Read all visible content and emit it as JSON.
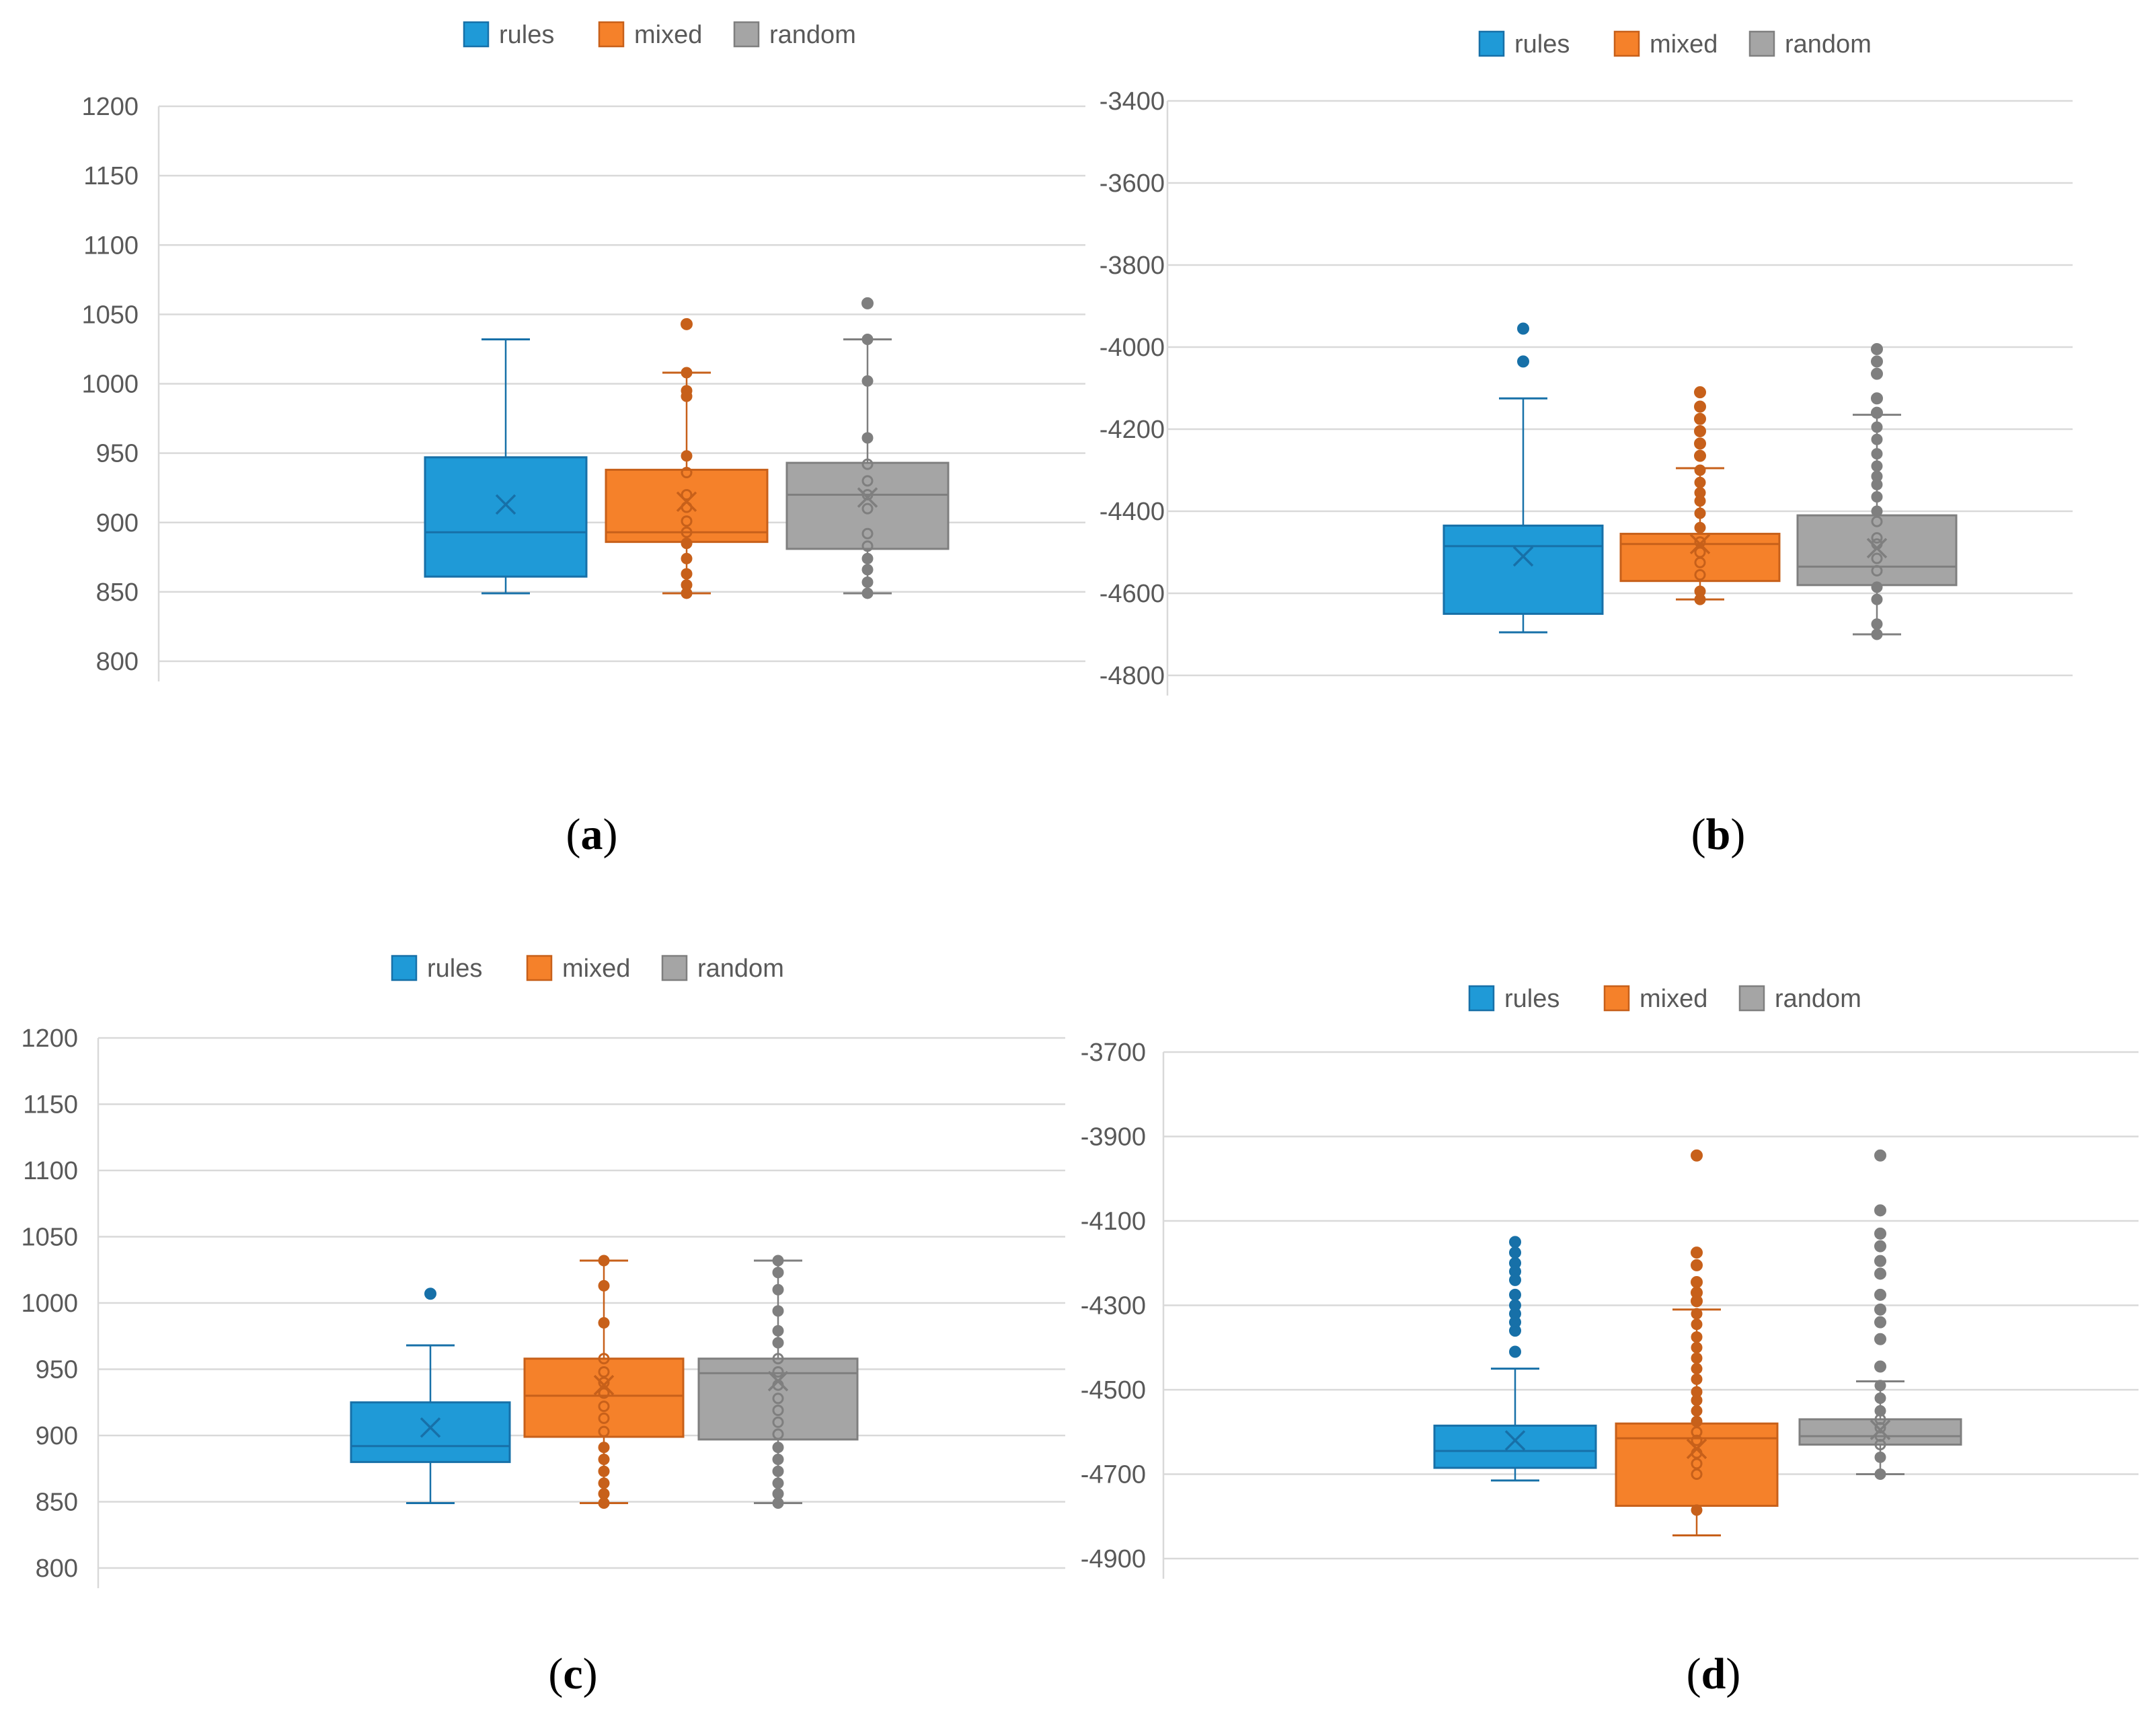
{
  "figure": {
    "captions": [
      "(a)",
      "(b)",
      "(c)",
      "(d)"
    ]
  },
  "colors": {
    "rules": "#1f9ad7",
    "rules_stroke": "#1770a8",
    "mixed": "#f5812a",
    "mixed_stroke": "#c7601a",
    "random": "#a5a5a5",
    "random_stroke": "#7f7f7f"
  },
  "chart_data": [
    {
      "id": "a",
      "type": "box",
      "caption": "(a)",
      "legend": [
        "rules",
        "mixed",
        "random"
      ],
      "yticks": [
        800,
        850,
        900,
        950,
        1000,
        1050,
        1100,
        1150,
        1200
      ],
      "ylim": [
        800,
        1200
      ],
      "series": [
        {
          "name": "rules",
          "q1": 861,
          "median": 893,
          "q3": 947,
          "whisker_low": 849,
          "whisker_high": 1032,
          "mean": 913,
          "outliers": [],
          "points": []
        },
        {
          "name": "mixed",
          "q1": 886,
          "median": 893,
          "q3": 938,
          "whisker_low": 849,
          "whisker_high": 1008,
          "mean": 915,
          "outliers": [
            1043
          ],
          "points": [
            849,
            855,
            863,
            874,
            885,
            893,
            901,
            911,
            920,
            936,
            948,
            991,
            995,
            1008
          ]
        },
        {
          "name": "random",
          "q1": 881,
          "median": 920,
          "q3": 943,
          "whisker_low": 849,
          "whisker_high": 1032,
          "mean": 918,
          "outliers": [
            1058
          ],
          "points": [
            849,
            857,
            866,
            874,
            883,
            892,
            910,
            920,
            930,
            942,
            961,
            1002,
            1032
          ]
        }
      ]
    },
    {
      "id": "b",
      "type": "box",
      "caption": "(b)",
      "legend": [
        "rules",
        "mixed",
        "random"
      ],
      "yticks": [
        -3400,
        -3600,
        -3800,
        -4000,
        -4200,
        -4400,
        -4600,
        -4800
      ],
      "ylim": [
        -4800,
        -3400
      ],
      "series": [
        {
          "name": "rules",
          "q1": -4650,
          "median": -4485,
          "q3": -4435,
          "whisker_low": -4695,
          "whisker_high": -4125,
          "mean": -4510,
          "outliers": [
            -3955,
            -4035
          ],
          "points": []
        },
        {
          "name": "mixed",
          "q1": -4570,
          "median": -4480,
          "q3": -4455,
          "whisker_low": -4615,
          "whisker_high": -4295,
          "mean": -4480,
          "outliers": [
            -4110,
            -4145,
            -4175,
            -4205,
            -4235,
            -4265
          ],
          "points": [
            -4615,
            -4595,
            -4555,
            -4525,
            -4500,
            -4475,
            -4440,
            -4405,
            -4375,
            -4355,
            -4330,
            -4300
          ]
        },
        {
          "name": "random",
          "q1": -4580,
          "median": -4535,
          "q3": -4410,
          "whisker_low": -4700,
          "whisker_high": -4165,
          "mean": -4490,
          "outliers": [
            -4005,
            -4035,
            -4065,
            -4125,
            -4160
          ],
          "points": [
            -4700,
            -4675,
            -4615,
            -4585,
            -4545,
            -4515,
            -4480,
            -4465,
            -4425,
            -4400,
            -4365,
            -4335,
            -4315,
            -4290,
            -4260,
            -4225,
            -4195
          ]
        }
      ]
    },
    {
      "id": "c",
      "type": "box",
      "caption": "(c)",
      "legend": [
        "rules",
        "mixed",
        "random"
      ],
      "yticks": [
        800,
        850,
        900,
        950,
        1000,
        1050,
        1100,
        1150,
        1200
      ],
      "ylim": [
        800,
        1200
      ],
      "series": [
        {
          "name": "rules",
          "q1": 880,
          "median": 892,
          "q3": 925,
          "whisker_low": 849,
          "whisker_high": 968,
          "mean": 906,
          "outliers": [
            1007
          ],
          "points": []
        },
        {
          "name": "mixed",
          "q1": 899,
          "median": 930,
          "q3": 958,
          "whisker_low": 849,
          "whisker_high": 1032,
          "mean": 938,
          "outliers": [],
          "points": [
            849,
            856,
            864,
            873,
            882,
            891,
            903,
            913,
            922,
            932,
            940,
            948,
            958,
            985,
            1013,
            1032
          ]
        },
        {
          "name": "random",
          "q1": 897,
          "median": 947,
          "q3": 958,
          "whisker_low": 849,
          "whisker_high": 1032,
          "mean": 941,
          "outliers": [],
          "points": [
            849,
            856,
            864,
            873,
            882,
            891,
            901,
            910,
            919,
            928,
            938,
            948,
            958,
            970,
            979,
            994,
            1010,
            1023,
            1032
          ]
        }
      ]
    },
    {
      "id": "d",
      "type": "box",
      "caption": "(d)",
      "legend": [
        "rules",
        "mixed",
        "random"
      ],
      "yticks": [
        -3700,
        -3900,
        -4100,
        -4300,
        -4500,
        -4700,
        -4900
      ],
      "ylim": [
        -4900,
        -3700
      ],
      "series": [
        {
          "name": "rules",
          "q1": -4685,
          "median": -4645,
          "q3": -4585,
          "whisker_low": -4715,
          "whisker_high": -4450,
          "mean": -4620,
          "outliers": [
            -4150,
            -4175,
            -4200,
            -4220,
            -4240,
            -4275,
            -4300,
            -4320,
            -4340,
            -4360,
            -4410
          ],
          "points": []
        },
        {
          "name": "mixed",
          "q1": -4775,
          "median": -4615,
          "q3": -4580,
          "whisker_low": -4845,
          "whisker_high": -4310,
          "mean": -4640,
          "outliers": [
            -3945,
            -4175,
            -4205,
            -4245,
            -4270,
            -4290
          ],
          "points": [
            -4785,
            -4700,
            -4675,
            -4650,
            -4620,
            -4600,
            -4575,
            -4550,
            -4525,
            -4505,
            -4475,
            -4450,
            -4425,
            -4400,
            -4375,
            -4345,
            -4320
          ]
        },
        {
          "name": "random",
          "q1": -4630,
          "median": -4610,
          "q3": -4570,
          "whisker_low": -4700,
          "whisker_high": -4480,
          "mean": -4595,
          "outliers": [
            -3945,
            -4075,
            -4130,
            -4160,
            -4195,
            -4225,
            -4275,
            -4310,
            -4340,
            -4380,
            -4445
          ],
          "points": [
            -4700,
            -4660,
            -4630,
            -4610,
            -4590,
            -4570,
            -4550,
            -4520,
            -4490
          ]
        }
      ]
    }
  ]
}
